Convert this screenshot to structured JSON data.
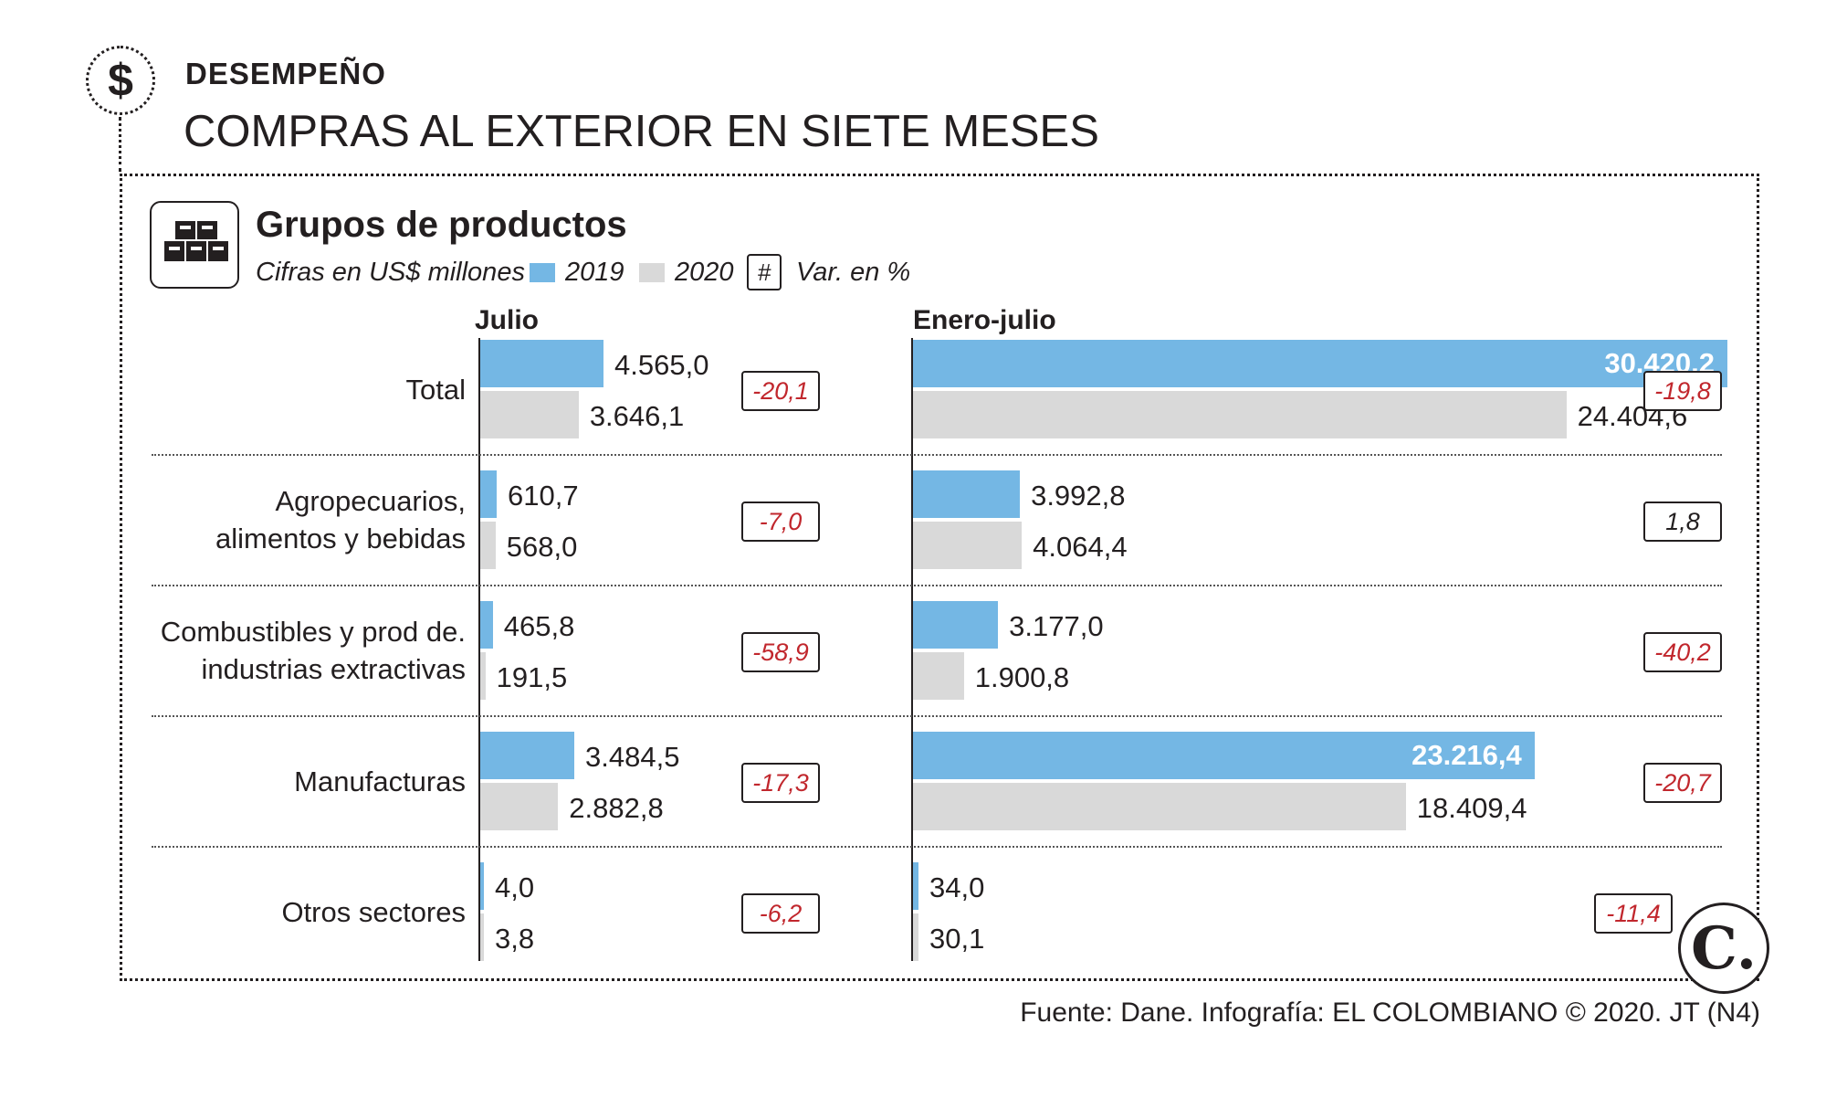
{
  "header": {
    "section": "DESEMPEÑO",
    "headline": "COMPRAS AL EXTERIOR EN SIETE MESES",
    "dollar_symbol": "$",
    "icon": "boxes-icon"
  },
  "chart_data": {
    "type": "bar",
    "orientation": "horizontal",
    "title": "Grupos de productos",
    "subtitle": "Cifras en US$ millones",
    "legend": [
      {
        "name": "2019",
        "color": "#74b7e4"
      },
      {
        "name": "2020",
        "color": "#d9d9d9"
      }
    ],
    "var_symbol": "#",
    "var_label": "Var. en %",
    "categories": [
      [
        "Total"
      ],
      [
        "Agropecuarios,",
        "alimentos y bebidas"
      ],
      [
        "Combustibles y prod de.",
        "industrias extractivas"
      ],
      [
        "Manufacturas"
      ],
      [
        "Otros sectores"
      ]
    ],
    "panels": [
      {
        "name": "Julio",
        "max": 4565.0,
        "series": [
          {
            "name": "2019",
            "values": [
              4565.0,
              610.7,
              465.8,
              3484.5,
              4.0
            ],
            "labels": [
              "4.565,0",
              "610,7",
              "465,8",
              "3.484,5",
              "4,0"
            ]
          },
          {
            "name": "2020",
            "values": [
              3646.1,
              568.0,
              191.5,
              2882.8,
              3.8
            ],
            "labels": [
              "3.646,1",
              "568,0",
              "191,5",
              "2.882,8",
              "3,8"
            ]
          }
        ],
        "variation": [
          -20.1,
          -7.0,
          -58.9,
          -17.3,
          -6.2
        ],
        "variation_labels": [
          "-20,1",
          "-7,0",
          "-58,9",
          "-17,3",
          "-6,2"
        ]
      },
      {
        "name": "Enero-julio",
        "max": 30420.2,
        "series": [
          {
            "name": "2019",
            "values": [
              30420.2,
              3992.8,
              3177.0,
              23216.4,
              34.0
            ],
            "labels": [
              "30.420,2",
              "3.992,8",
              "3.177,0",
              "23.216,4",
              "34,0"
            ]
          },
          {
            "name": "2020",
            "values": [
              24404.6,
              4064.4,
              1900.8,
              18409.4,
              30.1
            ],
            "labels": [
              "24.404,6",
              "4.064,4",
              "1.900,8",
              "18.409,4",
              "30,1"
            ]
          }
        ],
        "variation": [
          -19.8,
          1.8,
          -40.2,
          -20.7,
          -11.4
        ],
        "variation_labels": [
          "-19,8",
          "1,8",
          "-40,2",
          "-20,7",
          "-11,4"
        ]
      }
    ]
  },
  "footer": {
    "logo": "C.",
    "source": "Fuente: Dane. Infografía: EL COLOMBIANO © 2020. JT (N4)"
  }
}
